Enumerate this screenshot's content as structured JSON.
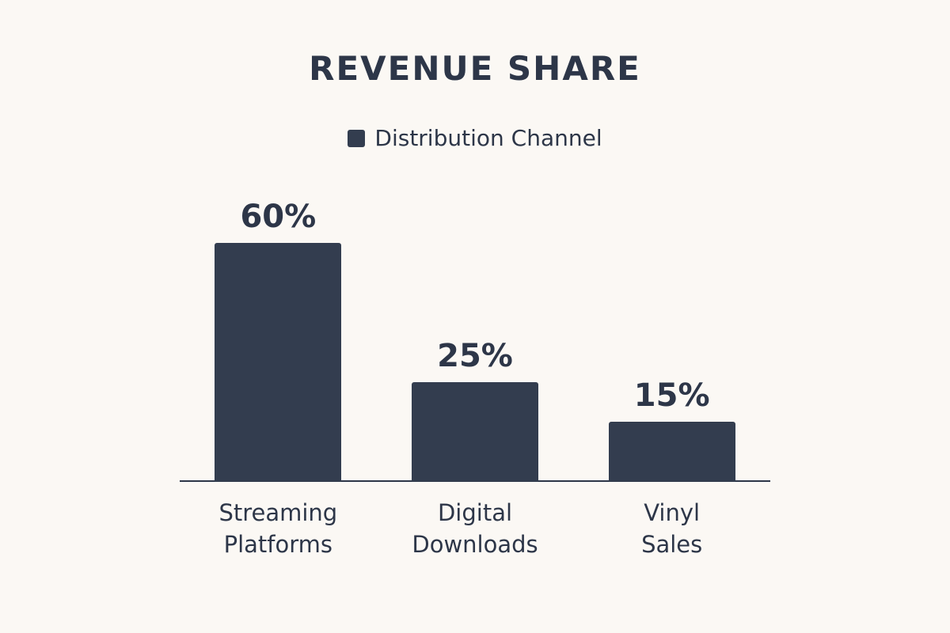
{
  "chart_data": {
    "type": "bar",
    "title": "REVENUE SHARE",
    "categories": [
      "Streaming Platforms",
      "Digital Downloads",
      "Vinyl Sales"
    ],
    "series": [
      {
        "name": "Distribution Channel",
        "color": "#333d4f",
        "values": [
          60,
          25,
          15
        ],
        "value_labels": [
          "60%",
          "25%",
          "15%"
        ]
      }
    ]
  }
}
